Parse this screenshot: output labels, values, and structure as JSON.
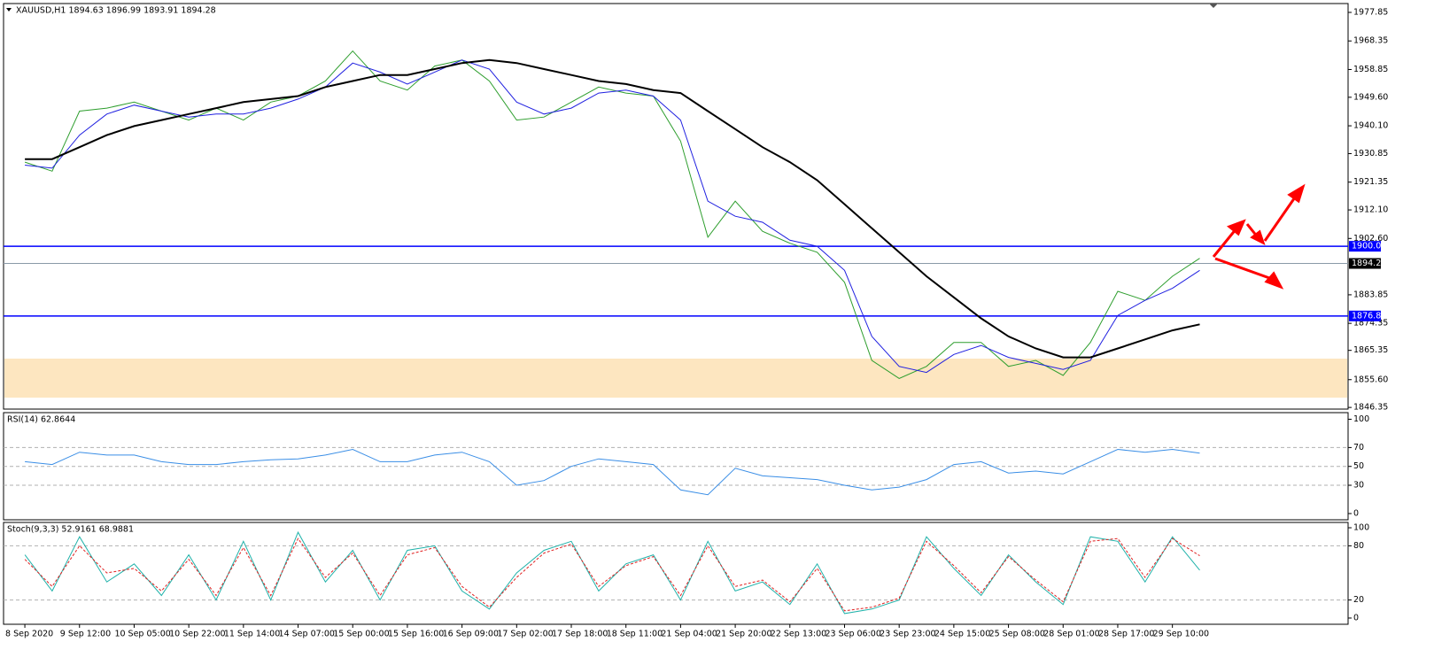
{
  "chart_data": [
    {
      "type": "line",
      "title": "XAUUSD,H1  1894.63 1896.99 1893.91 1894.28",
      "categories": [
        "8 Sep 2020",
        null,
        "9 Sep 12:00",
        null,
        "10 Sep 05:00",
        null,
        "10 Sep 22:00",
        null,
        "11 Sep 14:00",
        null,
        "14 Sep 07:00",
        null,
        "15 Sep 00:00",
        null,
        "15 Sep 16:00",
        null,
        "16 Sep 09:00",
        null,
        "17 Sep 02:00",
        null,
        "17 Sep 18:00",
        null,
        "18 Sep 11:00",
        null,
        "21 Sep 04:00",
        null,
        "21 Sep 20:00",
        null,
        "22 Sep 13:00",
        null,
        "23 Sep 06:00",
        null,
        "23 Sep 23:00",
        null,
        "24 Sep 15:00",
        null,
        "25 Sep 08:00",
        null,
        "28 Sep 01:00",
        null,
        "28 Sep 17:00",
        null,
        "29 Sep 10:00",
        null
      ],
      "xlim": [
        -0.78,
        48.43
      ],
      "ylim": [
        1845.8,
        1980.8
      ],
      "yticks": [
        1977.85,
        1968.35,
        1958.85,
        {
          "value": 1949.6,
          "label": "1949.60"
        },
        {
          "value": 1940.1,
          "label": "1940.10"
        },
        1930.85,
        1921.35,
        {
          "value": 1912.1,
          "label": "1912.10"
        },
        {
          "value": 1902.6,
          "label": "1902.60"
        },
        1883.85,
        1874.35,
        1865.35,
        {
          "value": 1855.6,
          "label": "1855.60"
        },
        1846.35
      ],
      "levels": [
        {
          "value": 1900,
          "label": "1900.00",
          "color": "#0000ff"
        },
        {
          "value": 1876.8,
          "label": "1876.80",
          "color": "#0000ff"
        }
      ],
      "last_price": 1894.28,
      "zone": [
        1849.6,
        1862.6
      ],
      "series": [
        {
          "name": "Price",
          "color": "#2e9e2e",
          "values": [
            1928,
            1925,
            1945,
            1946,
            1948,
            1945,
            1942,
            1946,
            1942,
            1948,
            1950,
            1955,
            1965,
            1955,
            1952,
            1960,
            1962,
            1955,
            1942,
            1943,
            1948,
            1953,
            1951,
            1950,
            1935,
            1903,
            1915,
            1905,
            1901,
            1898,
            1888,
            1862,
            1856,
            1860,
            1868,
            1868,
            1860,
            1862,
            1857,
            1868,
            1885,
            1882,
            1890,
            1896
          ]
        },
        {
          "name": "MA fast",
          "color": "#2020e0",
          "values": [
            1927,
            1926,
            1937,
            1944,
            1947,
            1945,
            1943,
            1944,
            1944,
            1946,
            1949,
            1953,
            1961,
            1958,
            1954,
            1958,
            1962,
            1959,
            1948,
            1944,
            1946,
            1951,
            1952,
            1950,
            1942,
            1915,
            1910,
            1908,
            1902,
            1900,
            1892,
            1870,
            1860,
            1858,
            1864,
            1867,
            1863,
            1861,
            1859,
            1862,
            1877,
            1882,
            1886,
            1892
          ]
        },
        {
          "name": "MA slow",
          "color": "#000000",
          "values": [
            1929,
            1929,
            1933,
            1937,
            1940,
            1942,
            1944,
            1946,
            1948,
            1949,
            1950,
            1953,
            1955,
            1957,
            1957,
            1959,
            1961,
            1962,
            1961,
            1959,
            1957,
            1955,
            1954,
            1952,
            1951,
            1945,
            1939,
            1933,
            1928,
            1922,
            1914,
            1906,
            1898,
            1890,
            1883,
            1876,
            1870,
            1866,
            1863,
            1863,
            1866,
            1869,
            1872,
            1874
          ]
        }
      ]
    },
    {
      "type": "line",
      "title": "RSI(14) 62.8644",
      "ylim": [
        -6.6,
        107
      ],
      "yticks": [
        100,
        70,
        50,
        30,
        0
      ],
      "levels": [
        70,
        50,
        30
      ],
      "series": [
        {
          "name": "RSI",
          "color": "#3a8ee6",
          "values": [
            55,
            52,
            65,
            62,
            62,
            55,
            52,
            52,
            55,
            57,
            58,
            62,
            68,
            55,
            55,
            62,
            65,
            55,
            30,
            35,
            50,
            58,
            55,
            52,
            25,
            20,
            48,
            40,
            38,
            36,
            30,
            25,
            28,
            36,
            52,
            55,
            43,
            45,
            42,
            55,
            68,
            65,
            68,
            64
          ]
        }
      ]
    },
    {
      "type": "line",
      "title": "Stoch(9,3,3) 52.9161 68.9881",
      "ylim": [
        -6.9,
        105.9
      ],
      "yticks": [
        100,
        80,
        20,
        0
      ],
      "levels": [
        80,
        20
      ],
      "series": [
        {
          "name": "Main",
          "color": "#20b2aa",
          "values": [
            70,
            30,
            90,
            40,
            60,
            25,
            70,
            20,
            85,
            20,
            95,
            40,
            75,
            20,
            75,
            80,
            30,
            10,
            50,
            75,
            85,
            30,
            60,
            70,
            20,
            85,
            30,
            40,
            15,
            60,
            5,
            10,
            20,
            90,
            55,
            25,
            70,
            40,
            15,
            90,
            85,
            40,
            90,
            53
          ]
        },
        {
          "name": "Signal",
          "color": "#e02020",
          "dashed": true,
          "values": [
            65,
            35,
            80,
            50,
            55,
            30,
            65,
            25,
            78,
            25,
            88,
            45,
            72,
            25,
            70,
            78,
            35,
            12,
            45,
            72,
            82,
            35,
            58,
            68,
            25,
            80,
            35,
            42,
            18,
            55,
            8,
            12,
            22,
            85,
            58,
            28,
            68,
            42,
            18,
            85,
            88,
            45,
            88,
            69
          ]
        }
      ]
    }
  ]
}
